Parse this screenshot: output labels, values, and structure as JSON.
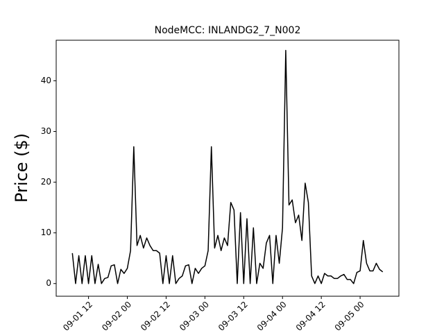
{
  "chart_data": {
    "type": "line",
    "title": "NodeMCC: INLANDG2_7_N002",
    "y_label": "Price ($)",
    "x": [
      "09-01 07",
      "09-01 08",
      "09-01 09",
      "09-01 10",
      "09-01 11",
      "09-01 12",
      "09-01 13",
      "09-01 14",
      "09-01 15",
      "09-01 16",
      "09-01 17",
      "09-01 18",
      "09-01 19",
      "09-01 20",
      "09-01 21",
      "09-01 22",
      "09-01 23",
      "09-02 00",
      "09-02 01",
      "09-02 02",
      "09-02 03",
      "09-02 04",
      "09-02 05",
      "09-02 06",
      "09-02 07",
      "09-02 08",
      "09-02 09",
      "09-02 10",
      "09-02 11",
      "09-02 12",
      "09-02 13",
      "09-02 14",
      "09-02 15",
      "09-02 16",
      "09-02 17",
      "09-02 18",
      "09-02 19",
      "09-02 20",
      "09-02 21",
      "09-02 22",
      "09-02 23",
      "09-03 00",
      "09-03 01",
      "09-03 02",
      "09-03 03",
      "09-03 04",
      "09-03 05",
      "09-03 06",
      "09-03 07",
      "09-03 08",
      "09-03 09",
      "09-03 10",
      "09-03 11",
      "09-03 12",
      "09-03 13",
      "09-03 14",
      "09-03 15",
      "09-03 16",
      "09-03 17",
      "09-03 18",
      "09-03 19",
      "09-03 20",
      "09-03 21",
      "09-03 22",
      "09-03 23",
      "09-04 00",
      "09-04 01",
      "09-04 02",
      "09-04 03",
      "09-04 04",
      "09-04 05",
      "09-04 06",
      "09-04 07",
      "09-04 08",
      "09-04 09",
      "09-04 10",
      "09-04 11",
      "09-04 12",
      "09-04 13",
      "09-04 14",
      "09-04 15",
      "09-04 16",
      "09-04 17",
      "09-04 18",
      "09-04 19",
      "09-04 20",
      "09-04 21",
      "09-04 22",
      "09-04 23",
      "09-05 00",
      "09-05 01",
      "09-05 02",
      "09-05 03",
      "09-05 04",
      "09-05 05",
      "09-05 06",
      "09-05 07"
    ],
    "series": [
      {
        "name": "NodeMCC",
        "color": "#000000",
        "values": [
          6,
          0,
          5.5,
          0,
          5.5,
          0,
          5.5,
          0,
          3.8,
          0,
          1,
          1.2,
          3.5,
          3.7,
          0,
          2.8,
          2,
          3,
          6.5,
          27,
          7.5,
          9.5,
          7,
          9,
          7.5,
          6.5,
          6.5,
          6,
          0,
          5.5,
          0,
          5.5,
          0,
          1,
          1.5,
          3.5,
          3.7,
          0,
          3,
          2,
          3,
          3.5,
          6.5,
          27,
          7,
          9.5,
          6.5,
          9,
          7.5,
          16,
          14.5,
          0,
          14,
          0,
          12.8,
          0,
          11,
          0,
          4,
          3,
          8,
          9.5,
          0,
          9.5,
          4,
          11,
          46,
          15.5,
          16.5,
          12,
          13.5,
          8.5,
          19.8,
          16,
          1.5,
          0,
          1.5,
          0,
          2,
          1.5,
          1.5,
          1,
          1,
          1.5,
          1.8,
          0.8,
          0.8,
          0,
          2.2,
          2.5,
          8.5,
          4,
          2.5,
          2.5,
          4,
          2.8,
          2.3
        ]
      }
    ],
    "xlim": [
      "09-01 02",
      "09-05 12"
    ],
    "xticks": [
      "09-01 12",
      "09-02 00",
      "09-02 12",
      "09-03 00",
      "09-03 12",
      "09-04 00",
      "09-04 12",
      "09-05 00"
    ],
    "ylim": [
      -2.5,
      48
    ],
    "yticks": [
      0,
      10,
      20,
      30,
      40
    ]
  }
}
